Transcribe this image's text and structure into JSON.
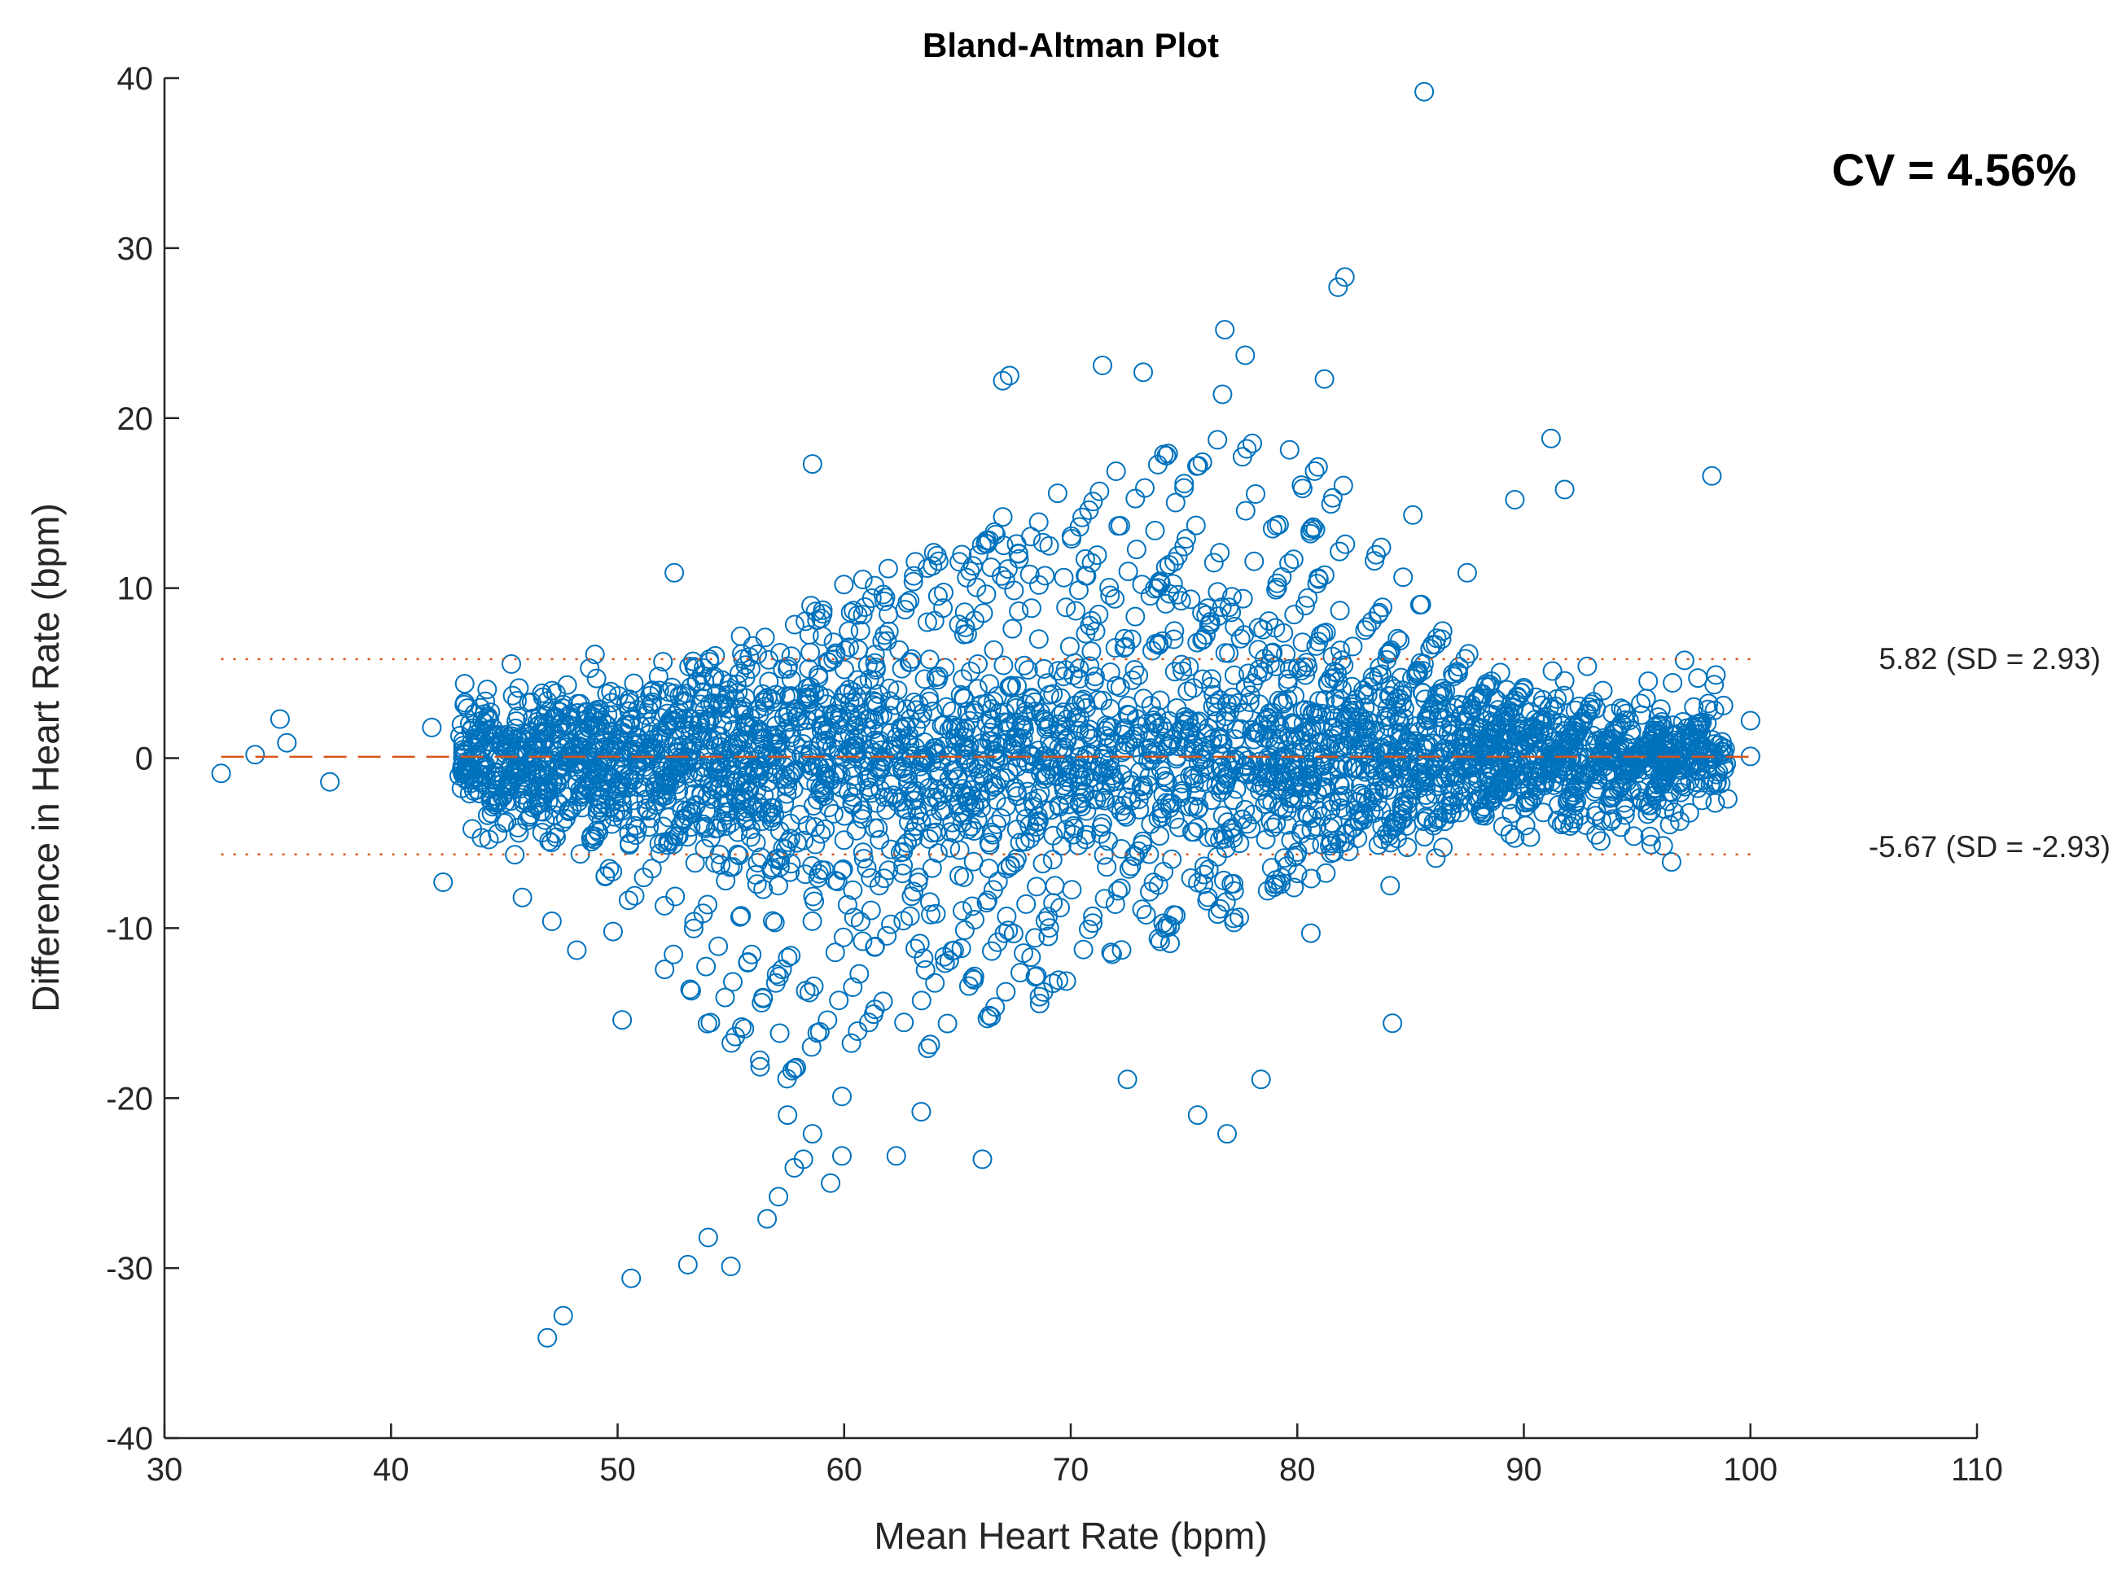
{
  "chart_data": {
    "type": "scatter",
    "title": "Bland-Altman Plot",
    "xlabel": "Mean Heart Rate (bpm)",
    "ylabel": "Difference in Heart Rate (bpm)",
    "xlim": [
      30,
      110
    ],
    "ylim": [
      -40,
      40
    ],
    "xticks": [
      "30",
      "40",
      "50",
      "60",
      "70",
      "80",
      "90",
      "100",
      "110"
    ],
    "yticks": [
      "40",
      "30",
      "20",
      "10",
      "0",
      "-10",
      "-20",
      "-30",
      "-40"
    ],
    "grid": false,
    "marker": "open-circle",
    "marker_color": "#0072BD",
    "line_color": "#D95319",
    "mean_line": {
      "y": 0.08,
      "x_range": [
        32.5,
        100
      ],
      "style": "dashed"
    },
    "upper_loa": {
      "y": 5.82,
      "x_range": [
        32.5,
        100
      ],
      "style": "dotted",
      "label": "5.82 (SD = 2.93)"
    },
    "lower_loa": {
      "y": -5.67,
      "x_range": [
        32.5,
        100
      ],
      "style": "dotted",
      "label": "-5.67 (SD = -2.93)"
    },
    "annotation": "CV = 4.56%",
    "x_range_of_points": [
      32.5,
      100
    ],
    "outlier_points": [
      [
        32.5,
        -0.9
      ],
      [
        34.0,
        0.2
      ],
      [
        35.1,
        2.3
      ],
      [
        35.4,
        0.9
      ],
      [
        37.3,
        -1.4
      ],
      [
        41.8,
        1.8
      ],
      [
        42.3,
        -7.3
      ],
      [
        45.8,
        -8.2
      ],
      [
        47.1,
        -9.6
      ],
      [
        48.2,
        -11.3
      ],
      [
        49.8,
        -10.2
      ],
      [
        50.2,
        -15.4
      ],
      [
        50.6,
        -30.6
      ],
      [
        46.9,
        -34.1
      ],
      [
        47.6,
        -32.8
      ],
      [
        53.1,
        -29.8
      ],
      [
        54.0,
        -28.2
      ],
      [
        55.0,
        -29.9
      ],
      [
        56.6,
        -27.1
      ],
      [
        57.1,
        -25.8
      ],
      [
        57.8,
        -24.1
      ],
      [
        58.2,
        -23.6
      ],
      [
        59.4,
        -25.0
      ],
      [
        59.9,
        -23.4
      ],
      [
        62.3,
        -23.4
      ],
      [
        58.6,
        -22.1
      ],
      [
        57.5,
        -21.0
      ],
      [
        59.9,
        -19.9
      ],
      [
        63.4,
        -20.8
      ],
      [
        66.1,
        -23.6
      ],
      [
        72.5,
        -18.9
      ],
      [
        75.6,
        -21.0
      ],
      [
        76.9,
        -22.1
      ],
      [
        78.4,
        -18.9
      ],
      [
        84.2,
        -15.6
      ],
      [
        84.1,
        -7.5
      ],
      [
        80.6,
        -10.3
      ],
      [
        85.6,
        39.2
      ],
      [
        81.8,
        27.7
      ],
      [
        82.1,
        28.3
      ],
      [
        76.8,
        25.2
      ],
      [
        77.7,
        23.7
      ],
      [
        76.7,
        21.4
      ],
      [
        81.2,
        22.3
      ],
      [
        73.2,
        22.7
      ],
      [
        71.4,
        23.1
      ],
      [
        67.0,
        22.2
      ],
      [
        67.3,
        22.5
      ],
      [
        91.2,
        18.8
      ],
      [
        91.8,
        15.8
      ],
      [
        89.6,
        15.2
      ],
      [
        98.3,
        16.6
      ],
      [
        58.6,
        17.3
      ],
      [
        52.5,
        10.9
      ],
      [
        87.5,
        10.9
      ],
      [
        85.1,
        14.3
      ],
      [
        49.0,
        6.1
      ],
      [
        100.0,
        2.2
      ],
      [
        100.0,
        0.1
      ],
      [
        97.5,
        3.0
      ],
      [
        89.6,
        -4.7
      ],
      [
        92.8,
        5.4
      ],
      [
        99.0,
        -2.4
      ],
      [
        98.5,
        -1.5
      ]
    ]
  }
}
